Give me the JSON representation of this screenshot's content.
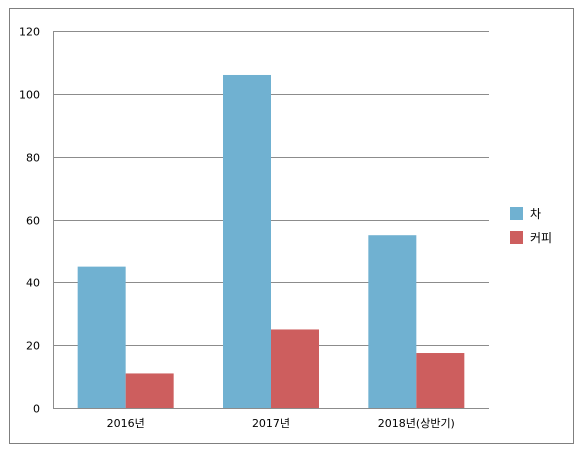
{
  "chart_data": {
    "type": "bar",
    "categories": [
      "2016년",
      "2017년",
      "2018년(상반기)"
    ],
    "series": [
      {
        "name": "차",
        "values": [
          45,
          106,
          55
        ],
        "color": "#70b1d1"
      },
      {
        "name": "커피",
        "values": [
          11,
          25,
          17.5
        ],
        "color": "#cd5e5e"
      }
    ],
    "ylim": [
      0,
      120
    ],
    "yticks": [
      0,
      20,
      40,
      60,
      80,
      100,
      120
    ],
    "grid": true,
    "legend": "right"
  }
}
